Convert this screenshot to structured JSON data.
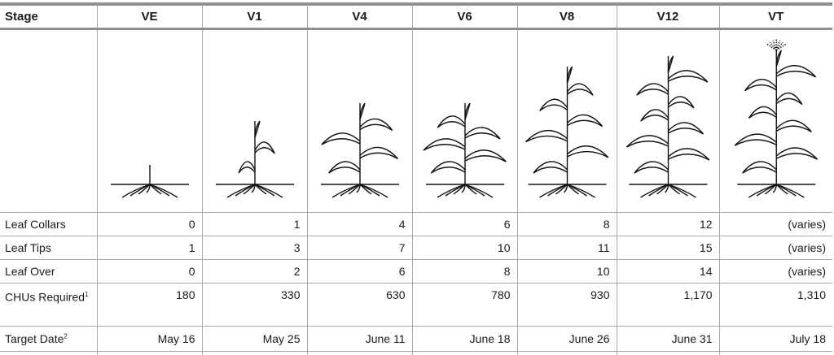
{
  "header": {
    "stage_label": "Stage",
    "stages": [
      "VE",
      "V1",
      "V4",
      "V6",
      "V8",
      "V12",
      "VT"
    ]
  },
  "plant_illustrations": [
    "corn-seedling-ve",
    "corn-plant-v1",
    "corn-plant-v4",
    "corn-plant-v6",
    "corn-plant-v8",
    "corn-plant-v12",
    "corn-plant-vt-tassel"
  ],
  "rows": [
    {
      "label": "Leaf Collars",
      "values": [
        "0",
        "1",
        "4",
        "6",
        "8",
        "12",
        "(varies)"
      ]
    },
    {
      "label": "Leaf Tips",
      "values": [
        "1",
        "3",
        "7",
        "10",
        "11",
        "15",
        "(varies)"
      ]
    },
    {
      "label": "Leaf Over",
      "values": [
        "0",
        "2",
        "6",
        "8",
        "10",
        "14",
        "(varies)"
      ]
    },
    {
      "label": "CHUs Required",
      "footnote": "1",
      "values": [
        "180",
        "330",
        "630",
        "780",
        "930",
        "1,170",
        "1,310"
      ]
    },
    {
      "label": "Target Date",
      "footnote": "2",
      "values": [
        "May 16",
        "May 25",
        "June 11",
        "June 18",
        "June 26",
        "June 31",
        "July 18"
      ]
    }
  ]
}
